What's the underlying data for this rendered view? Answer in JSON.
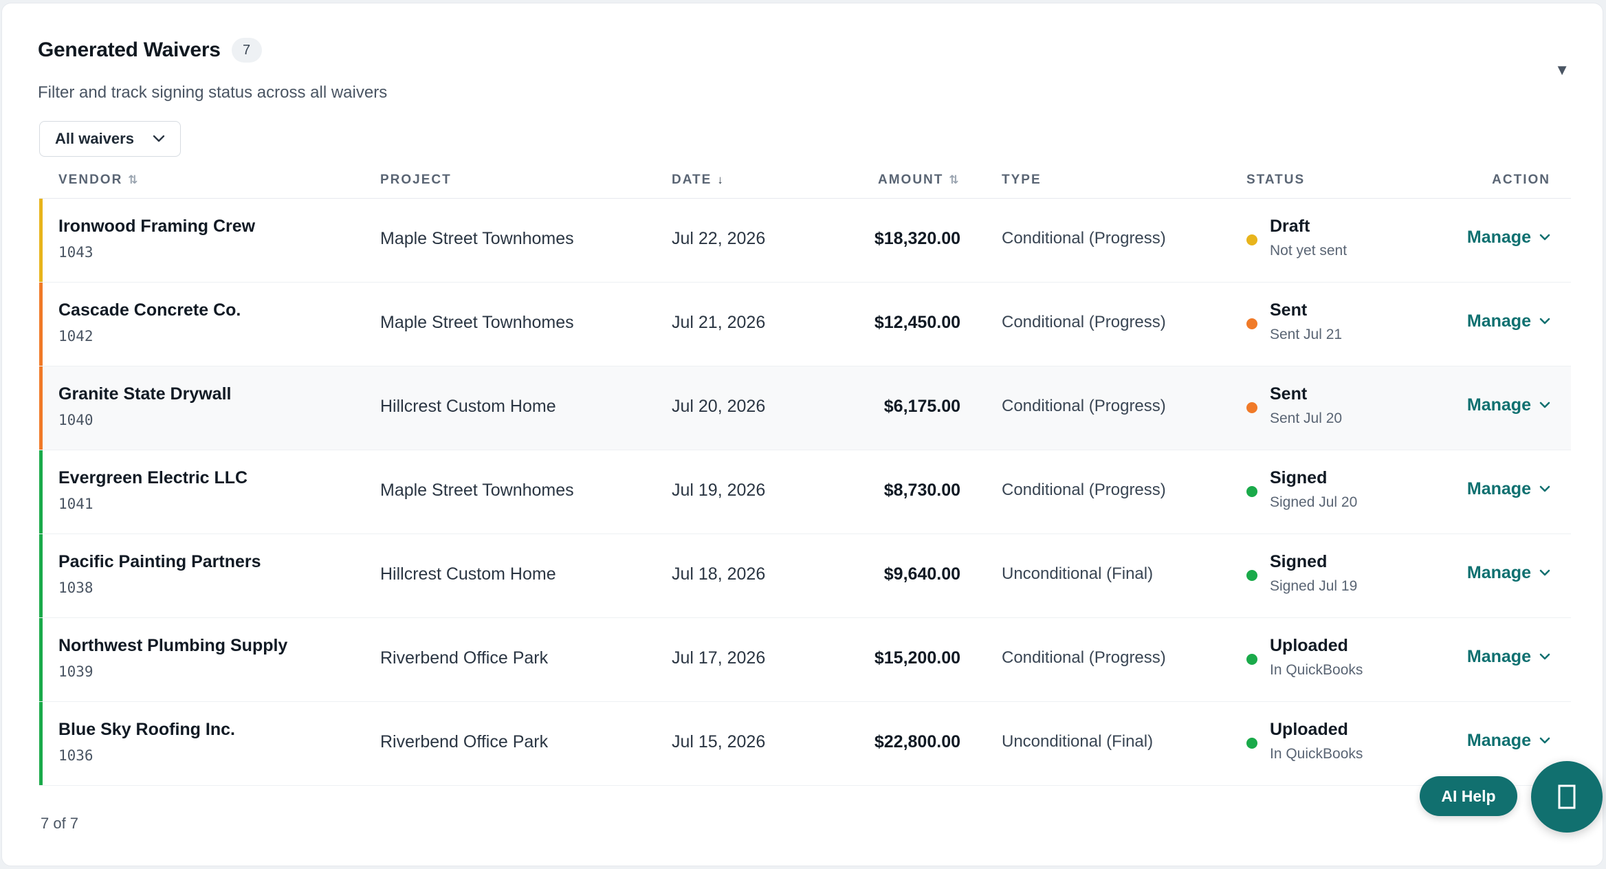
{
  "header": {
    "title": "Generated Waivers",
    "count": "7",
    "subtitle": "Filter and track signing status across all waivers",
    "collapse_icon": "triangle-down-icon"
  },
  "filter": {
    "selected": "All waivers"
  },
  "columns": {
    "vendor": "VENDOR",
    "project": "PROJECT",
    "date": "DATE",
    "amount": "AMOUNT",
    "type": "TYPE",
    "status": "STATUS",
    "action": "ACTION"
  },
  "colors": {
    "draft": "#e8b41c",
    "sent": "#f07a28",
    "signed": "#1aaa4a",
    "uploaded": "#1aaa4a",
    "accent": "#11706f"
  },
  "rows": [
    {
      "vendor": "Ironwood Framing Crew",
      "id": "1043",
      "project": "Maple Street Townhomes",
      "date": "Jul 22, 2026",
      "amount": "$18,320.00",
      "type": "Conditional (Progress)",
      "status": "Draft",
      "status_sub": "Not yet sent",
      "action": "Manage",
      "color": "#e8b41c",
      "stripe": "#e8b41c"
    },
    {
      "vendor": "Cascade Concrete Co.",
      "id": "1042",
      "project": "Maple Street Townhomes",
      "date": "Jul 21, 2026",
      "amount": "$12,450.00",
      "type": "Conditional (Progress)",
      "status": "Sent",
      "status_sub": "Sent Jul 21",
      "action": "Manage",
      "color": "#f07a28",
      "stripe": "#f07a28"
    },
    {
      "vendor": "Granite State Drywall",
      "id": "1040",
      "project": "Hillcrest Custom Home",
      "date": "Jul 20, 2026",
      "amount": "$6,175.00",
      "type": "Conditional (Progress)",
      "status": "Sent",
      "status_sub": "Sent Jul 20",
      "action": "Manage",
      "color": "#f07a28",
      "stripe": "#f07a28"
    },
    {
      "vendor": "Evergreen Electric LLC",
      "id": "1041",
      "project": "Maple Street Townhomes",
      "date": "Jul 19, 2026",
      "amount": "$8,730.00",
      "type": "Conditional (Progress)",
      "status": "Signed",
      "status_sub": "Signed Jul 20",
      "action": "Manage",
      "color": "#1aaa4a",
      "stripe": "#1aaa4a"
    },
    {
      "vendor": "Pacific Painting Partners",
      "id": "1038",
      "project": "Hillcrest Custom Home",
      "date": "Jul 18, 2026",
      "amount": "$9,640.00",
      "type": "Unconditional (Final)",
      "status": "Signed",
      "status_sub": "Signed Jul 19",
      "action": "Manage",
      "color": "#1aaa4a",
      "stripe": "#1aaa4a"
    },
    {
      "vendor": "Northwest Plumbing Supply",
      "id": "1039",
      "project": "Riverbend Office Park",
      "date": "Jul 17, 2026",
      "amount": "$15,200.00",
      "type": "Conditional (Progress)",
      "status": "Uploaded",
      "status_sub": "In QuickBooks",
      "action": "Manage",
      "color": "#1aaa4a",
      "stripe": "#1aaa4a"
    },
    {
      "vendor": "Blue Sky Roofing Inc.",
      "id": "1036",
      "project": "Riverbend Office Park",
      "date": "Jul 15, 2026",
      "amount": "$22,800.00",
      "type": "Unconditional (Final)",
      "status": "Uploaded",
      "status_sub": "In QuickBooks",
      "action": "Manage",
      "color": "#1aaa4a",
      "stripe": "#1aaa4a"
    }
  ],
  "footer": {
    "count_text": "7 of 7"
  },
  "ai_help": {
    "label": "AI Help"
  },
  "chat_button": {
    "icon": "chat-icon"
  }
}
